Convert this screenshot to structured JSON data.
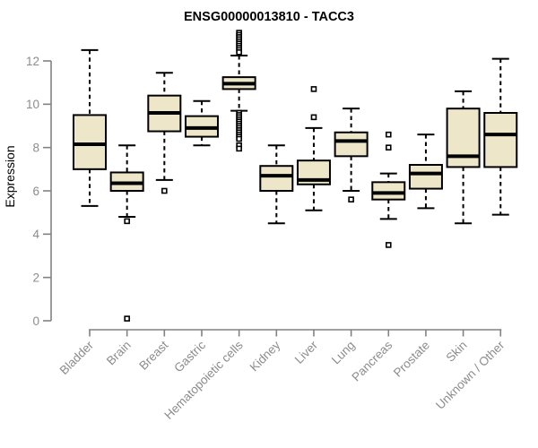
{
  "chart_data": {
    "type": "boxplot",
    "title": "ENSG00000013810 - TACC3",
    "xlabel": "",
    "ylabel": "Expression",
    "ylim": [
      0,
      12
    ],
    "yticks": [
      0,
      2,
      4,
      6,
      8,
      10,
      12
    ],
    "grid": false,
    "legend": false,
    "categories": [
      "Bladder",
      "Brain",
      "Breast",
      "Gastric",
      "Hematopoietic cells",
      "Kidney",
      "Liver",
      "Lung",
      "Pancreas",
      "Prostate",
      "Skin",
      "Unknown / Other"
    ],
    "boxes": [
      {
        "category": "Bladder",
        "whisker_low": 5.3,
        "q1": 7.0,
        "median": 8.15,
        "q3": 9.5,
        "whisker_high": 12.5,
        "outliers": []
      },
      {
        "category": "Brain",
        "whisker_low": 4.8,
        "q1": 6.0,
        "median": 6.35,
        "q3": 6.85,
        "whisker_high": 8.1,
        "outliers": [
          4.6,
          0.1
        ]
      },
      {
        "category": "Breast",
        "whisker_low": 6.5,
        "q1": 8.75,
        "median": 9.6,
        "q3": 10.4,
        "whisker_high": 11.45,
        "outliers": [
          6.0
        ]
      },
      {
        "category": "Gastric",
        "whisker_low": 8.1,
        "q1": 8.5,
        "median": 8.9,
        "q3": 9.45,
        "whisker_high": 10.15,
        "outliers": []
      },
      {
        "category": "Hematopoietic cells",
        "whisker_low": 9.7,
        "q1": 10.7,
        "median": 10.95,
        "q3": 11.25,
        "whisker_high": 12.25,
        "outliers": [
          13.3,
          13.2,
          13.1,
          13.0,
          12.9,
          12.8,
          12.7,
          12.6,
          12.5,
          12.4,
          9.6,
          9.5,
          9.4,
          9.3,
          9.2,
          9.1,
          9.0,
          8.9,
          8.8,
          8.7,
          8.6,
          8.5,
          8.4,
          8.1,
          7.95
        ]
      },
      {
        "category": "Kidney",
        "whisker_low": 4.5,
        "q1": 6.0,
        "median": 6.7,
        "q3": 7.15,
        "whisker_high": 8.1,
        "outliers": []
      },
      {
        "category": "Liver",
        "whisker_low": 5.1,
        "q1": 6.3,
        "median": 6.5,
        "q3": 7.4,
        "whisker_high": 8.9,
        "outliers": [
          10.7,
          9.4
        ]
      },
      {
        "category": "Lung",
        "whisker_low": 6.0,
        "q1": 7.6,
        "median": 8.3,
        "q3": 8.7,
        "whisker_high": 9.8,
        "outliers": [
          5.6
        ]
      },
      {
        "category": "Pancreas",
        "whisker_low": 4.7,
        "q1": 5.6,
        "median": 5.9,
        "q3": 6.4,
        "whisker_high": 6.8,
        "outliers": [
          8.6,
          8.0,
          3.5
        ]
      },
      {
        "category": "Prostate",
        "whisker_low": 5.2,
        "q1": 6.1,
        "median": 6.8,
        "q3": 7.2,
        "whisker_high": 8.6,
        "outliers": []
      },
      {
        "category": "Skin",
        "whisker_low": 4.5,
        "q1": 7.1,
        "median": 7.6,
        "q3": 9.8,
        "whisker_high": 10.6,
        "outliers": []
      },
      {
        "category": "Unknown / Other",
        "whisker_low": 4.9,
        "q1": 7.1,
        "median": 8.6,
        "q3": 9.6,
        "whisker_high": 12.1,
        "outliers": []
      }
    ],
    "colors": {
      "box_fill": "#ede6c8",
      "box_border": "#000000",
      "median": "#000000",
      "whisker": "#000000",
      "outlier_border": "#000000",
      "outlier_fill": "#ffffff",
      "axis": "#828282",
      "tick_label": "#8c8c8c",
      "title": "#000000",
      "background": "#ffffff"
    }
  }
}
